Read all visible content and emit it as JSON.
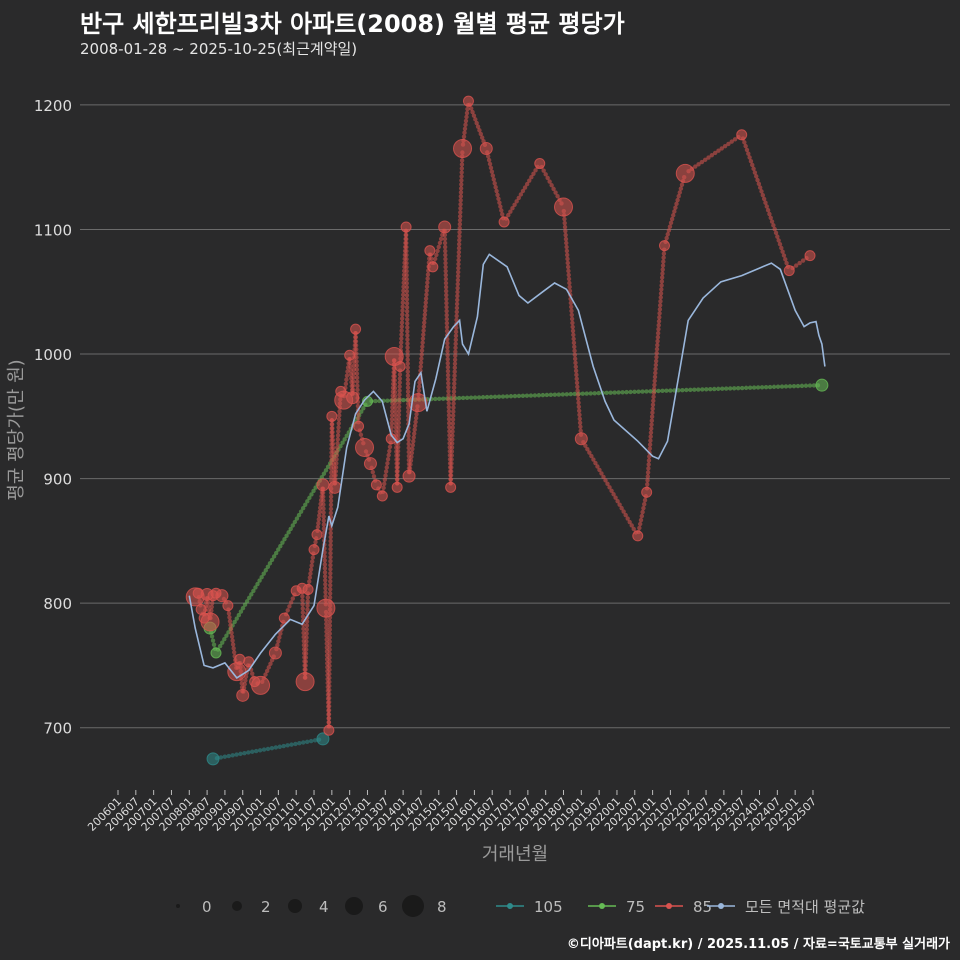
{
  "title": "반구 세한프리빌3차 아파트(2008) 월별 평균 평당가",
  "subtitle": "2008-01-28 ~ 2025-10-25(최근계약일)",
  "credit": "©디아파트(dapt.kr) / 2025.11.05 / 자료=국토교통부 실거래가",
  "colors": {
    "bg": "#2a2a2b",
    "grid": "#6b6b6b",
    "s105": "#2e8b8b",
    "s75": "#66bb55",
    "s85": "#d9534f",
    "avg": "#9ab7dc"
  },
  "chart_data": {
    "type": "scatter+line",
    "title": "반구 세한프리빌3차 아파트(2008) 월별 평균 평당가",
    "xlabel": "거래년월",
    "ylabel": "평균 평당가(만 원)",
    "ylim": [
      650,
      1220
    ],
    "yticks": [
      700,
      800,
      900,
      1000,
      1100,
      1200
    ],
    "xticks": [
      "200601",
      "200607",
      "200701",
      "200707",
      "200801",
      "200807",
      "200901",
      "200907",
      "201001",
      "201007",
      "201101",
      "201107",
      "201201",
      "201207",
      "201301",
      "201307",
      "201401",
      "201407",
      "201501",
      "201507",
      "201601",
      "201607",
      "201701",
      "201707",
      "201801",
      "201807",
      "201901",
      "201907",
      "202001",
      "202007",
      "202101",
      "202107",
      "202201",
      "202207",
      "202301",
      "202307",
      "202401",
      "202407",
      "202501",
      "202507"
    ],
    "size_legend": {
      "labels": [
        "0",
        "2",
        "4",
        "6",
        "8"
      ]
    },
    "color_legend": [
      "105",
      "75",
      "85",
      "모든 면적대 평균값"
    ],
    "series": [
      {
        "name": "105",
        "points": [
          [
            "2008-09",
            675
          ],
          [
            "2011-10",
            691
          ]
        ]
      },
      {
        "name": "75",
        "points": [
          [
            "2008-08",
            780
          ],
          [
            "2008-10",
            760
          ],
          [
            "2013-01",
            962
          ],
          [
            "2025-10",
            975
          ]
        ]
      },
      {
        "name": "85",
        "points": [
          [
            "2008-03",
            805
          ],
          [
            "2008-04",
            808
          ],
          [
            "2008-05",
            795
          ],
          [
            "2008-06",
            788
          ],
          [
            "2008-07",
            807
          ],
          [
            "2008-08",
            785
          ],
          [
            "2008-09",
            806
          ],
          [
            "2008-10",
            808
          ],
          [
            "2008-12",
            806
          ],
          [
            "2009-02",
            798
          ],
          [
            "2009-05",
            745
          ],
          [
            "2009-06",
            755
          ],
          [
            "2009-07",
            726
          ],
          [
            "2009-09",
            753
          ],
          [
            "2009-11",
            737
          ],
          [
            "2010-01",
            734
          ],
          [
            "2010-06",
            760
          ],
          [
            "2010-09",
            788
          ],
          [
            "2011-01",
            810
          ],
          [
            "2011-03",
            812
          ],
          [
            "2011-04",
            737
          ],
          [
            "2011-05",
            811
          ],
          [
            "2011-07",
            843
          ],
          [
            "2011-08",
            855
          ],
          [
            "2011-10",
            895
          ],
          [
            "2011-11",
            796
          ],
          [
            "2011-12",
            698
          ],
          [
            "2012-01",
            950
          ],
          [
            "2012-02",
            893
          ],
          [
            "2012-04",
            970
          ],
          [
            "2012-05",
            963
          ],
          [
            "2012-07",
            999
          ],
          [
            "2012-08",
            965
          ],
          [
            "2012-09",
            1020
          ],
          [
            "2012-10",
            942
          ],
          [
            "2012-12",
            925
          ],
          [
            "2013-02",
            912
          ],
          [
            "2013-04",
            895
          ],
          [
            "2013-06",
            886
          ],
          [
            "2013-09",
            932
          ],
          [
            "2013-10",
            998
          ],
          [
            "2013-11",
            893
          ],
          [
            "2013-12",
            990
          ],
          [
            "2014-02",
            1102
          ],
          [
            "2014-03",
            902
          ],
          [
            "2014-06",
            961
          ],
          [
            "2014-10",
            1083
          ],
          [
            "2014-11",
            1070
          ],
          [
            "2015-03",
            1102
          ],
          [
            "2015-05",
            893
          ],
          [
            "2015-09",
            1165
          ],
          [
            "2015-11",
            1203
          ],
          [
            "2016-05",
            1165
          ],
          [
            "2016-11",
            1106
          ],
          [
            "2017-11",
            1153
          ],
          [
            "2018-07",
            1118
          ],
          [
            "2019-01",
            932
          ],
          [
            "2020-08",
            854
          ],
          [
            "2020-11",
            889
          ],
          [
            "2021-05",
            1087
          ],
          [
            "2021-12",
            1145
          ],
          [
            "2023-07",
            1176
          ],
          [
            "2024-11",
            1067
          ],
          [
            "2025-06",
            1079
          ]
        ]
      },
      {
        "name": "모든 면적대 평균값",
        "points": [
          [
            "2008-01",
            806
          ],
          [
            "2008-03",
            780
          ],
          [
            "2008-06",
            750
          ],
          [
            "2008-09",
            748
          ],
          [
            "2009-01",
            752
          ],
          [
            "2009-05",
            740
          ],
          [
            "2009-09",
            746
          ],
          [
            "2010-01",
            760
          ],
          [
            "2010-06",
            775
          ],
          [
            "2010-11",
            787
          ],
          [
            "2011-03",
            783
          ],
          [
            "2011-07",
            798
          ],
          [
            "2011-10",
            843
          ],
          [
            "2011-12",
            870
          ],
          [
            "2012-01",
            862
          ],
          [
            "2012-03",
            877
          ],
          [
            "2012-06",
            925
          ],
          [
            "2012-09",
            952
          ],
          [
            "2012-12",
            963
          ],
          [
            "2013-03",
            970
          ],
          [
            "2013-06",
            962
          ],
          [
            "2013-09",
            935
          ],
          [
            "2013-11",
            929
          ],
          [
            "2014-01",
            932
          ],
          [
            "2014-03",
            944
          ],
          [
            "2014-05",
            978
          ],
          [
            "2014-07",
            985
          ],
          [
            "2014-09",
            954
          ],
          [
            "2014-12",
            980
          ],
          [
            "2015-03",
            1012
          ],
          [
            "2015-06",
            1022
          ],
          [
            "2015-08",
            1027
          ],
          [
            "2015-09",
            1008
          ],
          [
            "2015-11",
            1000
          ],
          [
            "2016-02",
            1030
          ],
          [
            "2016-04",
            1072
          ],
          [
            "2016-06",
            1080
          ],
          [
            "2016-12",
            1070
          ],
          [
            "2017-04",
            1047
          ],
          [
            "2017-07",
            1041
          ],
          [
            "2017-12",
            1050
          ],
          [
            "2018-04",
            1057
          ],
          [
            "2018-08",
            1052
          ],
          [
            "2018-12",
            1035
          ],
          [
            "2019-05",
            990
          ],
          [
            "2019-09",
            962
          ],
          [
            "2019-12",
            947
          ],
          [
            "2020-08",
            930
          ],
          [
            "2021-01",
            918
          ],
          [
            "2021-03",
            916
          ],
          [
            "2021-06",
            930
          ],
          [
            "2021-10",
            985
          ],
          [
            "2022-01",
            1027
          ],
          [
            "2022-06",
            1045
          ],
          [
            "2022-12",
            1058
          ],
          [
            "2023-07",
            1063
          ],
          [
            "2024-01",
            1069
          ],
          [
            "2024-05",
            1073
          ],
          [
            "2024-08",
            1068
          ],
          [
            "2025-01",
            1035
          ],
          [
            "2025-04",
            1022
          ],
          [
            "2025-06",
            1025
          ],
          [
            "2025-08",
            1026
          ],
          [
            "2025-09",
            1015
          ],
          [
            "2025-10",
            1008
          ],
          [
            "2025-11",
            990
          ]
        ]
      }
    ]
  }
}
